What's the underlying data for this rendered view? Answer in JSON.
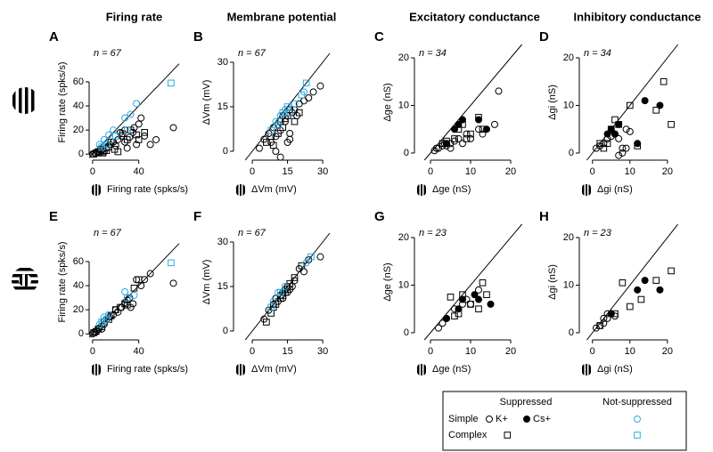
{
  "chart_data": [
    {
      "type": "scatter",
      "letter": "A",
      "title": "Firing rate",
      "n_label": "n = 67",
      "xlabel": "Firing rate (spks/s)",
      "ylabel": "Firing rate (spks/s)",
      "xlim": [
        -3,
        75
      ],
      "ylim": [
        -5,
        91
      ],
      "xticks": [
        0,
        40
      ],
      "yticks": [
        0,
        20,
        40,
        60
      ],
      "series": [
        {
          "marker": "circle",
          "filled": false,
          "color": "#000000",
          "x": [
            0,
            2,
            4,
            6,
            8,
            10,
            12,
            15,
            18,
            20,
            22,
            25,
            28,
            30,
            32,
            35,
            38,
            40,
            42,
            45,
            50,
            55,
            70,
            36,
            28,
            24
          ],
          "values": [
            0,
            1,
            2,
            1,
            3,
            2,
            5,
            8,
            10,
            7,
            12,
            15,
            10,
            5,
            14,
            18,
            8,
            25,
            30,
            15,
            8,
            12,
            22,
            22,
            20,
            18
          ]
        },
        {
          "marker": "square",
          "filled": false,
          "color": "#000000",
          "x": [
            1,
            3,
            5,
            7,
            9,
            12,
            14,
            16,
            19,
            22,
            26,
            30,
            33,
            38,
            45,
            40
          ],
          "values": [
            0,
            1,
            2,
            4,
            1,
            3,
            6,
            10,
            4,
            2,
            17,
            12,
            20,
            16,
            18,
            12
          ]
        },
        {
          "marker": "circle",
          "filled": false,
          "color": "#29abe2",
          "x": [
            6,
            10,
            14,
            18,
            28,
            33,
            38
          ],
          "values": [
            8,
            12,
            16,
            20,
            30,
            33,
            42
          ]
        },
        {
          "marker": "square",
          "filled": false,
          "color": "#29abe2",
          "x": [
            8,
            12,
            20,
            30,
            68
          ],
          "values": [
            6,
            8,
            15,
            20,
            59
          ]
        }
      ]
    },
    {
      "type": "scatter",
      "letter": "B",
      "title": "Membrane potential",
      "n_label": "n = 67",
      "xlabel": "ΔVm (mV)",
      "ylabel": "ΔVm (mV)",
      "xlim": [
        -8,
        33
      ],
      "ylim": [
        -3,
        36
      ],
      "xticks": [
        0,
        15,
        30
      ],
      "yticks": [
        0,
        15,
        30
      ],
      "series": [
        {
          "marker": "circle",
          "filled": false,
          "color": "#000000",
          "x": [
            3,
            5,
            7,
            8,
            9,
            10,
            11,
            12,
            13,
            14,
            15,
            16,
            17,
            18,
            19,
            20,
            22,
            24,
            26,
            29,
            10,
            12,
            16
          ],
          "values": [
            1,
            4,
            6,
            3,
            8,
            5,
            9,
            7,
            12,
            10,
            3,
            6,
            13,
            14,
            12,
            16,
            17,
            18,
            20,
            22,
            0,
            -2,
            4
          ]
        },
        {
          "marker": "square",
          "filled": false,
          "color": "#000000",
          "x": [
            6,
            8,
            9,
            11,
            12,
            13,
            14,
            15,
            16,
            18,
            20
          ],
          "values": [
            3,
            5,
            2,
            6,
            10,
            8,
            11,
            12,
            14,
            10,
            13
          ]
        },
        {
          "marker": "circle",
          "filled": false,
          "color": "#29abe2",
          "x": [
            10,
            12,
            14,
            16,
            18,
            22
          ],
          "values": [
            10,
            12,
            14,
            13,
            16,
            20
          ]
        },
        {
          "marker": "square",
          "filled": false,
          "color": "#29abe2",
          "x": [
            8,
            11,
            13,
            15,
            21,
            23
          ],
          "values": [
            7,
            9,
            13,
            15,
            19,
            23
          ]
        }
      ]
    },
    {
      "type": "scatter",
      "letter": "C",
      "title": "Excitatory conductance",
      "n_label": "n = 34",
      "xlabel": "Δge (nS)",
      "ylabel": "Δge (nS)",
      "xlim": [
        -4,
        26
      ],
      "ylim": [
        -1.5,
        22.8
      ],
      "xticks": [
        0,
        10,
        20
      ],
      "yticks": [
        0,
        10,
        20
      ],
      "series": [
        {
          "marker": "circle",
          "filled": false,
          "color": "#000000",
          "x": [
            1,
            1.5,
            2,
            3,
            3.5,
            4,
            5,
            6,
            7,
            8,
            9,
            10,
            12,
            13,
            16,
            17,
            5
          ],
          "values": [
            0.5,
            1,
            1,
            1.5,
            2,
            1.5,
            2,
            2.5,
            3,
            2,
            4,
            3,
            5,
            4,
            6,
            13,
            1
          ]
        },
        {
          "marker": "circle",
          "filled": true,
          "color": "#000000",
          "x": [
            4,
            6,
            7,
            8,
            12,
            14
          ],
          "values": [
            2,
            5,
            6,
            7,
            7,
            5
          ]
        },
        {
          "marker": "square",
          "filled": false,
          "color": "#000000",
          "x": [
            3,
            4,
            6,
            7,
            8,
            9,
            10,
            13,
            12
          ],
          "values": [
            2,
            2.5,
            3,
            5,
            6,
            3,
            4,
            5,
            7.5
          ]
        }
      ]
    },
    {
      "type": "scatter",
      "letter": "D",
      "title": "Inhibitory conductance",
      "n_label": "n = 34",
      "xlabel": "Δgi (nS)",
      "ylabel": "Δgi (nS)",
      "xlim": [
        -3.5,
        27.4
      ],
      "ylim": [
        -1.5,
        22.8
      ],
      "xticks": [
        0,
        10,
        20
      ],
      "yticks": [
        0,
        10,
        20
      ],
      "series": [
        {
          "marker": "circle",
          "filled": false,
          "color": "#000000",
          "x": [
            1,
            2,
            3,
            4,
            5,
            6,
            7,
            8,
            9,
            10,
            7,
            8,
            9
          ],
          "values": [
            1,
            1.5,
            2,
            3,
            3.5,
            4,
            3,
            1,
            5,
            4.5,
            -0.5,
            0,
            1
          ]
        },
        {
          "marker": "circle",
          "filled": true,
          "color": "#000000",
          "x": [
            4,
            5,
            6,
            7,
            12,
            14,
            18
          ],
          "values": [
            4,
            5,
            4,
            6,
            2,
            11,
            10
          ]
        },
        {
          "marker": "square",
          "filled": false,
          "color": "#000000",
          "x": [
            2,
            3,
            5,
            6,
            7,
            10,
            12,
            17,
            19,
            21,
            4
          ],
          "values": [
            2,
            1,
            5,
            7,
            6,
            10,
            1.5,
            9,
            15,
            6,
            2
          ]
        }
      ]
    },
    {
      "type": "scatter",
      "letter": "E",
      "n_label": "n = 67",
      "xlabel": "Firing rate (spks/s)",
      "ylabel": "Firing rate (spks/s)",
      "xlim": [
        -3,
        75
      ],
      "ylim": [
        -5,
        91
      ],
      "xticks": [
        0,
        40
      ],
      "yticks": [
        0,
        20,
        40,
        60
      ],
      "series": [
        {
          "marker": "circle",
          "filled": false,
          "color": "#000000",
          "x": [
            0,
            2,
            4,
            6,
            8,
            10,
            12,
            15,
            18,
            20,
            22,
            25,
            28,
            30,
            32,
            35,
            38,
            42,
            45,
            50,
            70,
            33
          ],
          "values": [
            0,
            1,
            3,
            5,
            4,
            8,
            12,
            14,
            16,
            20,
            18,
            22,
            26,
            28,
            30,
            25,
            45,
            40,
            45,
            50,
            42,
            22
          ]
        },
        {
          "marker": "square",
          "filled": false,
          "color": "#000000",
          "x": [
            1,
            3,
            5,
            8,
            10,
            14,
            16,
            20,
            24,
            28,
            30,
            36,
            40
          ],
          "values": [
            1,
            2,
            4,
            6,
            10,
            12,
            15,
            20,
            22,
            25,
            24,
            38,
            45
          ]
        },
        {
          "marker": "circle",
          "filled": false,
          "color": "#29abe2",
          "x": [
            6,
            10,
            14,
            28,
            36
          ],
          "values": [
            8,
            14,
            16,
            35,
            32
          ]
        },
        {
          "marker": "square",
          "filled": false,
          "color": "#29abe2",
          "x": [
            8,
            12,
            30,
            68
          ],
          "values": [
            10,
            12,
            30,
            59
          ]
        }
      ]
    },
    {
      "type": "scatter",
      "letter": "F",
      "n_label": "n = 67",
      "xlabel": "ΔVm (mV)",
      "ylabel": "ΔVm (mV)",
      "xlim": [
        -8,
        33
      ],
      "ylim": [
        -3,
        36
      ],
      "xticks": [
        0,
        15,
        30
      ],
      "yticks": [
        0,
        15,
        30
      ],
      "series": [
        {
          "marker": "circle",
          "filled": false,
          "color": "#000000",
          "x": [
            5,
            7,
            9,
            10,
            11,
            12,
            13,
            14,
            15,
            16,
            17,
            18,
            20,
            22,
            24,
            29,
            13,
            15
          ],
          "values": [
            4,
            7,
            9,
            11,
            10,
            12,
            13,
            14,
            15,
            14,
            15,
            17,
            21,
            20,
            24,
            25,
            11,
            13
          ]
        },
        {
          "marker": "square",
          "filled": false,
          "color": "#000000",
          "x": [
            6,
            8,
            9,
            10,
            12,
            13,
            14,
            15,
            16,
            18,
            21
          ],
          "values": [
            3,
            6,
            8,
            9,
            11,
            12,
            13,
            14,
            16,
            18,
            22
          ]
        },
        {
          "marker": "circle",
          "filled": false,
          "color": "#29abe2",
          "x": [
            9,
            11,
            14,
            23
          ],
          "values": [
            10,
            13,
            15,
            23
          ]
        },
        {
          "marker": "square",
          "filled": false,
          "color": "#29abe2",
          "x": [
            8,
            12,
            25
          ],
          "values": [
            8,
            13,
            25
          ]
        }
      ]
    },
    {
      "type": "scatter",
      "letter": "G",
      "n_label": "n = 23",
      "xlabel": "Δge (nS)",
      "ylabel": "Δge (nS)",
      "xlim": [
        -4,
        26
      ],
      "ylim": [
        -1.5,
        22.8
      ],
      "xticks": [
        0,
        10,
        20
      ],
      "yticks": [
        0,
        10,
        20
      ],
      "series": [
        {
          "marker": "circle",
          "filled": false,
          "color": "#000000",
          "x": [
            2,
            3,
            4,
            6,
            8,
            9,
            12,
            10
          ],
          "values": [
            1,
            2,
            3,
            5,
            6,
            7,
            9,
            6
          ]
        },
        {
          "marker": "circle",
          "filled": true,
          "color": "#000000",
          "x": [
            4,
            7,
            8,
            12,
            15,
            11
          ],
          "values": [
            3,
            5,
            7,
            7,
            6,
            8
          ]
        },
        {
          "marker": "square",
          "filled": false,
          "color": "#000000",
          "x": [
            5,
            7,
            8,
            10,
            13,
            14,
            12,
            6
          ],
          "values": [
            7.5,
            4,
            8,
            6,
            10.5,
            8,
            5,
            3.5
          ]
        }
      ]
    },
    {
      "type": "scatter",
      "letter": "H",
      "n_label": "n = 23",
      "xlabel": "Δgi (nS)",
      "ylabel": "Δgi (nS)",
      "xlim": [
        -3.5,
        27.4
      ],
      "ylim": [
        -1.5,
        22.8
      ],
      "xticks": [
        0,
        10,
        20
      ],
      "yticks": [
        0,
        10,
        20
      ],
      "series": [
        {
          "marker": "circle",
          "filled": false,
          "color": "#000000",
          "x": [
            1,
            2,
            3,
            4,
            5,
            6,
            4,
            3
          ],
          "values": [
            1,
            1.5,
            2,
            3,
            4,
            3.5,
            4,
            3
          ]
        },
        {
          "marker": "circle",
          "filled": true,
          "color": "#000000",
          "x": [
            5,
            12,
            14,
            18
          ],
          "values": [
            4,
            9,
            11,
            9
          ]
        },
        {
          "marker": "square",
          "filled": false,
          "color": "#000000",
          "x": [
            2,
            8,
            10,
            13,
            17,
            21,
            6
          ],
          "values": [
            1.5,
            10.5,
            5.5,
            7,
            11,
            13,
            4
          ]
        }
      ]
    }
  ],
  "legend": {
    "suppressed": "Suppressed",
    "not_suppressed": "Not-suppressed",
    "simple": "Simple",
    "complex": "Complex",
    "k": "K+",
    "cs": "Cs+",
    "cyan": "#29abe2"
  }
}
